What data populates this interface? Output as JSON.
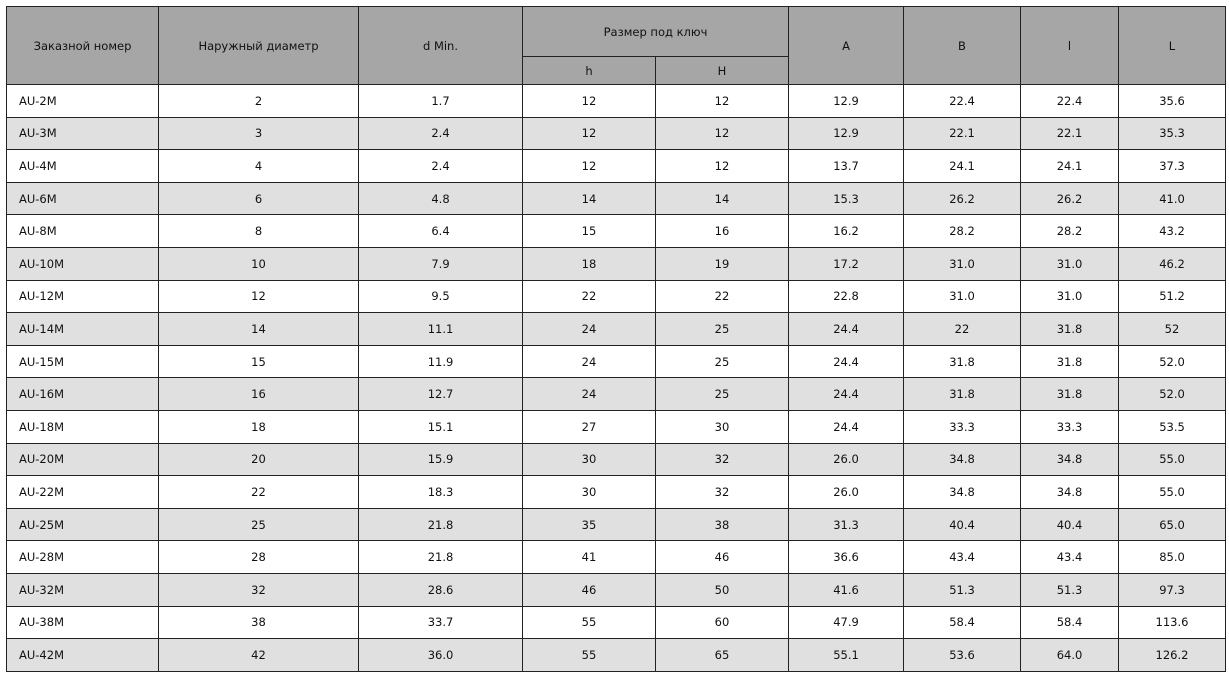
{
  "headers": {
    "order_no": "Заказной номер",
    "outer_diameter": "Наружный диаметр",
    "d_min": "d Min.",
    "wrench_size": "Размер под ключ",
    "h": "h",
    "H": "H",
    "A": "A",
    "B": "B",
    "l": "l",
    "L": "L"
  },
  "rows": [
    [
      "AU-2M",
      "2",
      "1.7",
      "12",
      "12",
      "12.9",
      "22.4",
      "22.4",
      "35.6"
    ],
    [
      "AU-3M",
      "3",
      "2.4",
      "12",
      "12",
      "12.9",
      "22.1",
      "22.1",
      "35.3"
    ],
    [
      "AU-4M",
      "4",
      "2.4",
      "12",
      "12",
      "13.7",
      "24.1",
      "24.1",
      "37.3"
    ],
    [
      "AU-6M",
      "6",
      "4.8",
      "14",
      "14",
      "15.3",
      "26.2",
      "26.2",
      "41.0"
    ],
    [
      "AU-8M",
      "8",
      "6.4",
      "15",
      "16",
      "16.2",
      "28.2",
      "28.2",
      "43.2"
    ],
    [
      "AU-10M",
      "10",
      "7.9",
      "18",
      "19",
      "17.2",
      "31.0",
      "31.0",
      "46.2"
    ],
    [
      "AU-12M",
      "12",
      "9.5",
      "22",
      "22",
      "22.8",
      "31.0",
      "31.0",
      "51.2"
    ],
    [
      "AU-14M",
      "14",
      "11.1",
      "24",
      "25",
      "24.4",
      "22",
      "31.8",
      "52"
    ],
    [
      "AU-15M",
      "15",
      "11.9",
      "24",
      "25",
      "24.4",
      "31.8",
      "31.8",
      "52.0"
    ],
    [
      "AU-16M",
      "16",
      "12.7",
      "24",
      "25",
      "24.4",
      "31.8",
      "31.8",
      "52.0"
    ],
    [
      "AU-18M",
      "18",
      "15.1",
      "27",
      "30",
      "24.4",
      "33.3",
      "33.3",
      "53.5"
    ],
    [
      "AU-20M",
      "20",
      "15.9",
      "30",
      "32",
      "26.0",
      "34.8",
      "34.8",
      "55.0"
    ],
    [
      "AU-22M",
      "22",
      "18.3",
      "30",
      "32",
      "26.0",
      "34.8",
      "34.8",
      "55.0"
    ],
    [
      "AU-25M",
      "25",
      "21.8",
      "35",
      "38",
      "31.3",
      "40.4",
      "40.4",
      "65.0"
    ],
    [
      "AU-28M",
      "28",
      "21.8",
      "41",
      "46",
      "36.6",
      "43.4",
      "43.4",
      "85.0"
    ],
    [
      "AU-32M",
      "32",
      "28.6",
      "46",
      "50",
      "41.6",
      "51.3",
      "51.3",
      "97.3"
    ],
    [
      "AU-38M",
      "38",
      "33.7",
      "55",
      "60",
      "47.9",
      "58.4",
      "58.4",
      "113.6"
    ],
    [
      "AU-42M",
      "42",
      "36.0",
      "55",
      "65",
      "55.1",
      "53.6",
      "64.0",
      "126.2"
    ]
  ]
}
